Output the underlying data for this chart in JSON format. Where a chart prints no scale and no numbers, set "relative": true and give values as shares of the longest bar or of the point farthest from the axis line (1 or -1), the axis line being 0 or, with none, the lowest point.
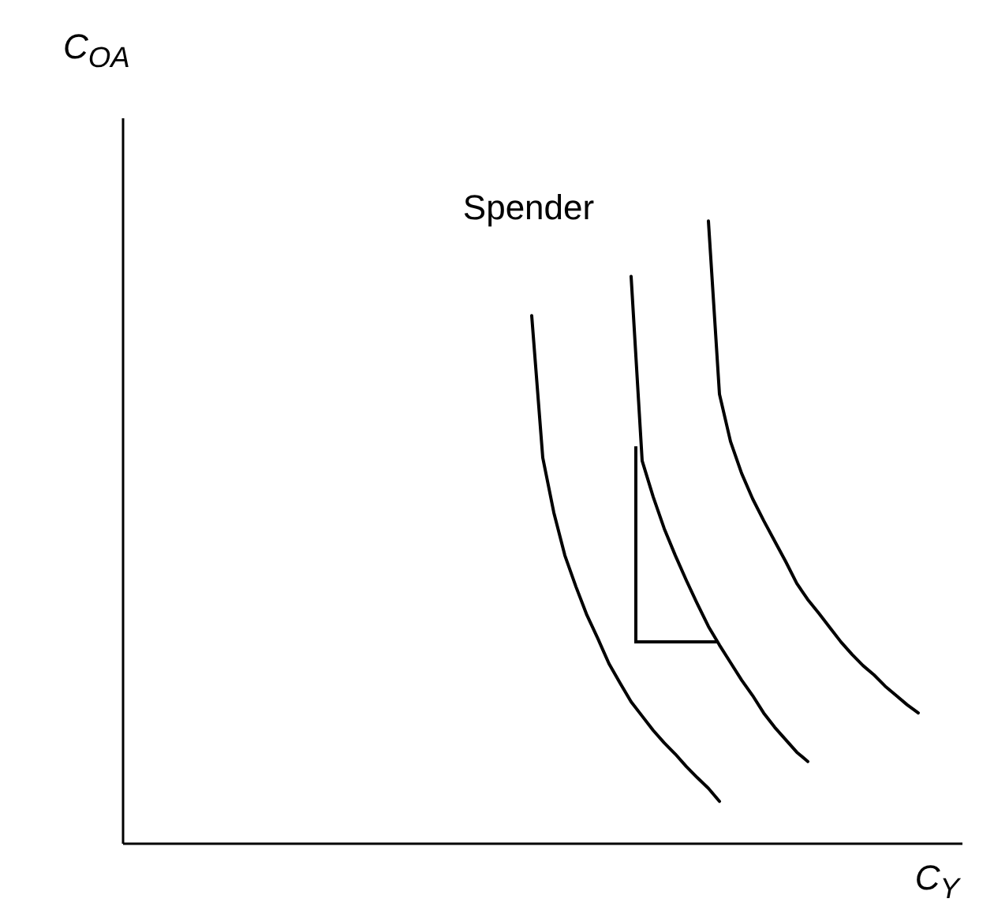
{
  "chart_data": {
    "type": "line",
    "relative": true,
    "xlabel": "C$_{Y}$",
    "ylabel": "C$_{OA}$",
    "annotations": [
      "Spender"
    ],
    "categories": [
      null,
      null,
      null,
      null,
      null,
      null,
      null,
      null,
      null,
      null,
      null,
      null,
      null,
      null,
      null,
      null,
      null,
      null,
      null,
      null,
      null,
      null,
      null,
      null,
      null,
      null,
      null,
      null,
      null,
      null,
      null,
      null,
      null,
      null,
      null,
      null,
      null,
      null,
      null,
      null,
      null,
      null,
      null,
      null,
      null,
      null,
      null,
      null,
      null,
      null,
      null,
      null,
      null,
      null,
      null,
      null,
      null,
      null,
      null,
      null,
      null,
      null,
      null,
      null,
      null,
      null,
      null,
      null,
      null,
      null,
      null,
      null,
      null,
      null,
      null,
      null,
      null
    ],
    "series": [
      {
        "color": "#000000",
        "values": [
          null,
          null,
          null,
          null,
          null,
          null,
          null,
          null,
          null,
          null,
          null,
          null,
          null,
          null,
          null,
          null,
          null,
          null,
          null,
          null,
          null,
          null,
          null,
          null,
          null,
          null,
          null,
          null,
          null,
          null,
          null,
          null,
          null,
          null,
          null,
          null,
          null,
          0.848,
          0.62,
          0.532,
          0.463,
          0.413,
          0.367,
          0.329,
          0.289,
          0.258,
          0.228,
          0.205,
          0.182,
          0.162,
          0.144,
          0.124,
          0.106,
          0.089,
          0.068,
          null,
          null,
          null,
          null,
          null,
          null,
          null,
          null,
          null,
          null,
          null,
          null,
          null,
          null,
          null,
          null,
          null,
          null,
          null,
          null,
          null,
          null
        ]
      },
      {
        "color": "#000000",
        "values": [
          null,
          null,
          null,
          null,
          null,
          null,
          null,
          null,
          null,
          null,
          null,
          null,
          null,
          null,
          null,
          null,
          null,
          null,
          null,
          null,
          null,
          null,
          null,
          null,
          null,
          null,
          null,
          null,
          null,
          null,
          null,
          null,
          null,
          null,
          null,
          null,
          null,
          null,
          null,
          null,
          null,
          null,
          null,
          null,
          null,
          null,
          0.911,
          0.615,
          0.557,
          0.506,
          0.463,
          0.423,
          0.385,
          0.349,
          0.319,
          0.291,
          0.263,
          0.238,
          0.21,
          0.187,
          0.167,
          0.147,
          0.132,
          null,
          null,
          null,
          null,
          null,
          null,
          null,
          null,
          null,
          null,
          null,
          null,
          null,
          null
        ]
      },
      {
        "color": "#000000",
        "values": [
          null,
          null,
          null,
          null,
          null,
          null,
          null,
          null,
          null,
          null,
          null,
          null,
          null,
          null,
          null,
          null,
          null,
          null,
          null,
          null,
          null,
          null,
          null,
          null,
          null,
          null,
          null,
          null,
          null,
          null,
          null,
          null,
          null,
          null,
          null,
          null,
          null,
          null,
          null,
          null,
          null,
          null,
          null,
          null,
          null,
          null,
          null,
          null,
          null,
          null,
          null,
          null,
          null,
          1.0,
          0.722,
          0.646,
          0.595,
          0.554,
          0.519,
          0.486,
          0.453,
          0.418,
          0.392,
          0.37,
          0.347,
          0.324,
          0.304,
          0.286,
          0.271,
          0.253,
          0.238,
          0.223,
          0.21,
          null,
          null,
          null,
          null
        ]
      }
    ]
  }
}
